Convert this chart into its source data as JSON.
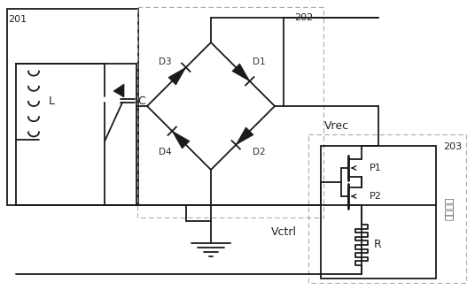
{
  "fig_width": 5.36,
  "fig_height": 3.28,
  "dpi": 100,
  "bg_color": "#ffffff",
  "line_color": "#1a1a1a",
  "dashed_color": "#aaaaaa",
  "label_201": "201",
  "label_202": "202",
  "label_203": "203",
  "label_L": "L",
  "label_C": "C",
  "label_D1": "D1",
  "label_D2": "D2",
  "label_D3": "D3",
  "label_D4": "D4",
  "label_P1": "P1",
  "label_P2": "P2",
  "label_R": "R",
  "label_Vrec": "Vrec",
  "label_Vctrl": "Vctrl",
  "label_field": "场强检测"
}
